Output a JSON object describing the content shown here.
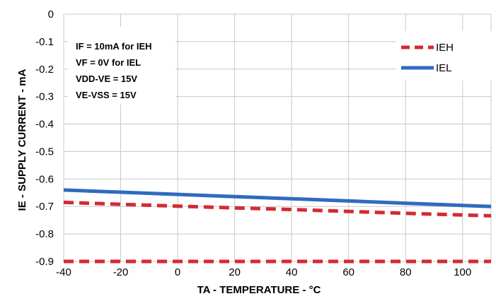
{
  "chart_data": {
    "type": "line",
    "xlabel": "TA - TEMPERATURE - °C",
    "ylabel": "IE - SUPPLY CURRENT  - mA",
    "xlim": [
      -40,
      110
    ],
    "ylim": [
      -0.9,
      0
    ],
    "x_ticks": [
      "-40",
      "-20",
      "0",
      "20",
      "40",
      "60",
      "80",
      "100"
    ],
    "y_ticks": [
      "0",
      "-0.1",
      "-0.2",
      "-0.3",
      "-0.4",
      "-0.5",
      "-0.6",
      "-0.7",
      "-0.8",
      "-0.9"
    ],
    "grid": true,
    "legend_position": "top-right",
    "annotations": [
      "IF = 10mA for IEH",
      "VF = 0V for IEL",
      "VDD-VE = 15V",
      "VE-VSS = 15V"
    ],
    "series": [
      {
        "name": "IEH",
        "style": "dashed",
        "color": "#d42a34",
        "x": [
          -40,
          -20,
          0,
          20,
          40,
          60,
          80,
          100,
          110
        ],
        "y": [
          -0.685,
          -0.692,
          -0.699,
          -0.705,
          -0.711,
          -0.718,
          -0.725,
          -0.731,
          -0.734
        ]
      },
      {
        "name": "IEL",
        "style": "solid",
        "color": "#2f6bbf",
        "x": [
          -40,
          -20,
          0,
          20,
          40,
          60,
          80,
          100,
          110
        ],
        "y": [
          -0.64,
          -0.648,
          -0.656,
          -0.664,
          -0.672,
          -0.68,
          -0.688,
          -0.696,
          -0.7
        ]
      },
      {
        "name": "",
        "style": "dashed",
        "color": "#d42a34",
        "x": [
          -40,
          110
        ],
        "y": [
          -0.9,
          -0.9
        ]
      }
    ]
  }
}
